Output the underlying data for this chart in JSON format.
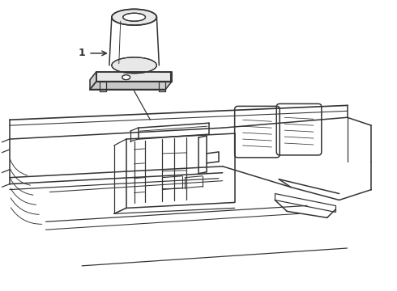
{
  "bg_color": "#ffffff",
  "line_color": "#333333",
  "line_width": 1.1,
  "fig_width": 4.9,
  "fig_height": 3.6,
  "dpi": 100
}
